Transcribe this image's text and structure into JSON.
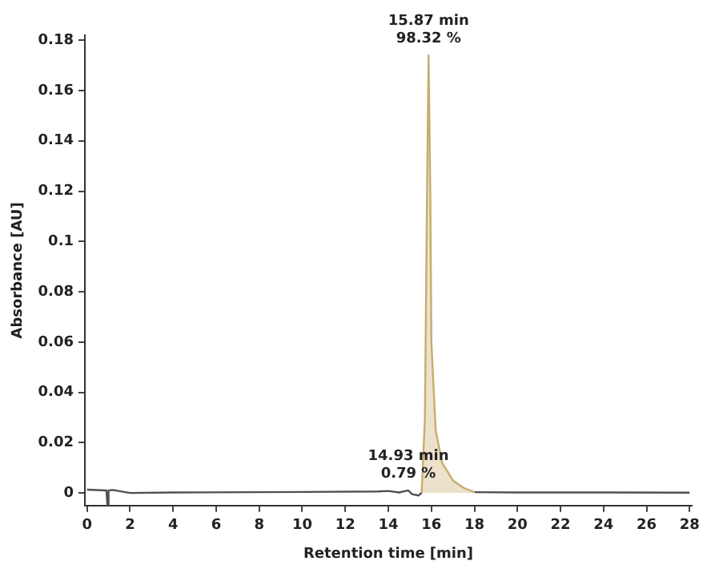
{
  "chart_data": {
    "type": "line",
    "xlabel": "Retention time [min]",
    "ylabel": "Absorbance [AU]",
    "xlim": [
      -0.1,
      28.1
    ],
    "xticks": [
      0,
      2,
      4,
      6,
      8,
      10,
      12,
      14,
      16,
      18,
      20,
      22,
      24,
      26,
      28
    ],
    "ylim": [
      -0.005,
      0.182
    ],
    "yticks": [
      0,
      0.02,
      0.04,
      0.06,
      0.08,
      0.1,
      0.12,
      0.14,
      0.16,
      0.18
    ],
    "grid": false,
    "legend": false,
    "marker": "none",
    "series": [
      {
        "type": "line",
        "color": "#505050",
        "x": [
          0,
          0.9,
          0.95,
          1.0,
          1.2,
          2,
          4,
          10,
          13.5,
          14,
          14.5,
          14.8,
          14.93,
          15.1,
          15.4,
          15.55
        ],
        "values": [
          0.0013,
          0.001,
          -0.005,
          0.001,
          0.0012,
          0,
          0.0002,
          0.0004,
          0.0006,
          0.0008,
          0.0002,
          0.0008,
          0.001,
          -0.0005,
          -0.001,
          0
        ]
      },
      {
        "type": "area",
        "color": "#c8ac6c",
        "x": [
          15.55,
          15.7,
          15.8,
          15.87,
          15.95,
          16.0,
          16.2,
          16.5,
          17,
          17.5,
          18
        ],
        "values": [
          0,
          0.03,
          0.12,
          0.174,
          0.12,
          0.06,
          0.025,
          0.012,
          0.005,
          0.002,
          0.0003
        ]
      },
      {
        "type": "line",
        "color": "#505050",
        "x": [
          18,
          20,
          24,
          28
        ],
        "values": [
          0.0003,
          0.0002,
          0.0002,
          0.0001
        ]
      }
    ],
    "annotations": [
      {
        "text": "15.87 min\n98.32 %",
        "x": 15.87,
        "y": 0.174
      },
      {
        "text": "14.93 min\n0.79 %",
        "x": 14.93,
        "y": 0.001
      }
    ]
  }
}
